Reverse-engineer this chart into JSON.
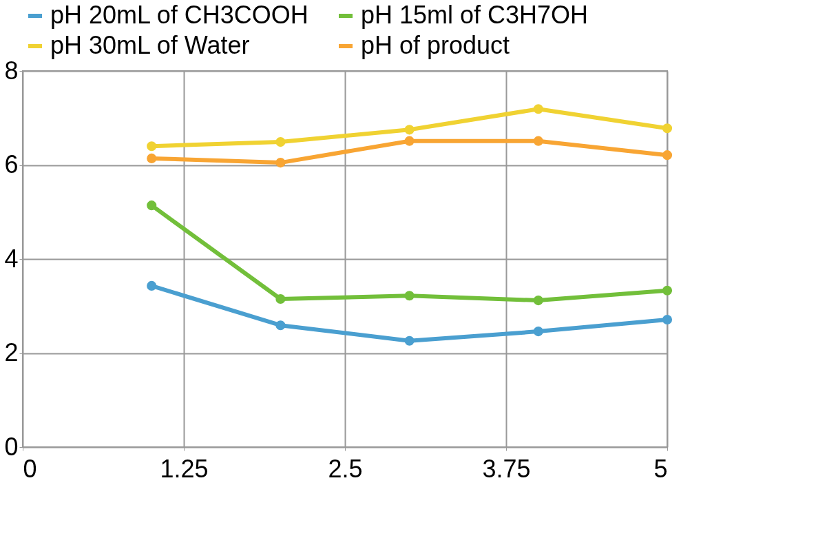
{
  "chart_data": {
    "type": "line",
    "x": [
      1,
      2,
      3,
      4,
      5
    ],
    "series": [
      {
        "name": "pH 20mL of CH3COOH",
        "color": "#4a9fd0",
        "values": [
          3.43,
          2.59,
          2.26,
          2.46,
          2.71
        ]
      },
      {
        "name": "pH  15ml of C3H7OH",
        "color": "#72bf3a",
        "values": [
          5.14,
          3.15,
          3.22,
          3.12,
          3.33
        ]
      },
      {
        "name": "pH 30mL of Water",
        "color": "#f0d232",
        "values": [
          6.4,
          6.49,
          6.75,
          7.19,
          6.78
        ]
      },
      {
        "name": "pH of product",
        "color": "#f8a533",
        "values": [
          6.14,
          6.05,
          6.51,
          6.51,
          6.21
        ]
      }
    ],
    "xlim": [
      0,
      5
    ],
    "xticks": [
      0,
      1.25,
      2.5,
      3.75,
      5
    ],
    "ylim": [
      0,
      8
    ],
    "yticks": [
      0,
      2,
      4,
      6,
      8
    ],
    "grid": true,
    "legend": "top",
    "marker": "circle",
    "line_style": "solid"
  }
}
